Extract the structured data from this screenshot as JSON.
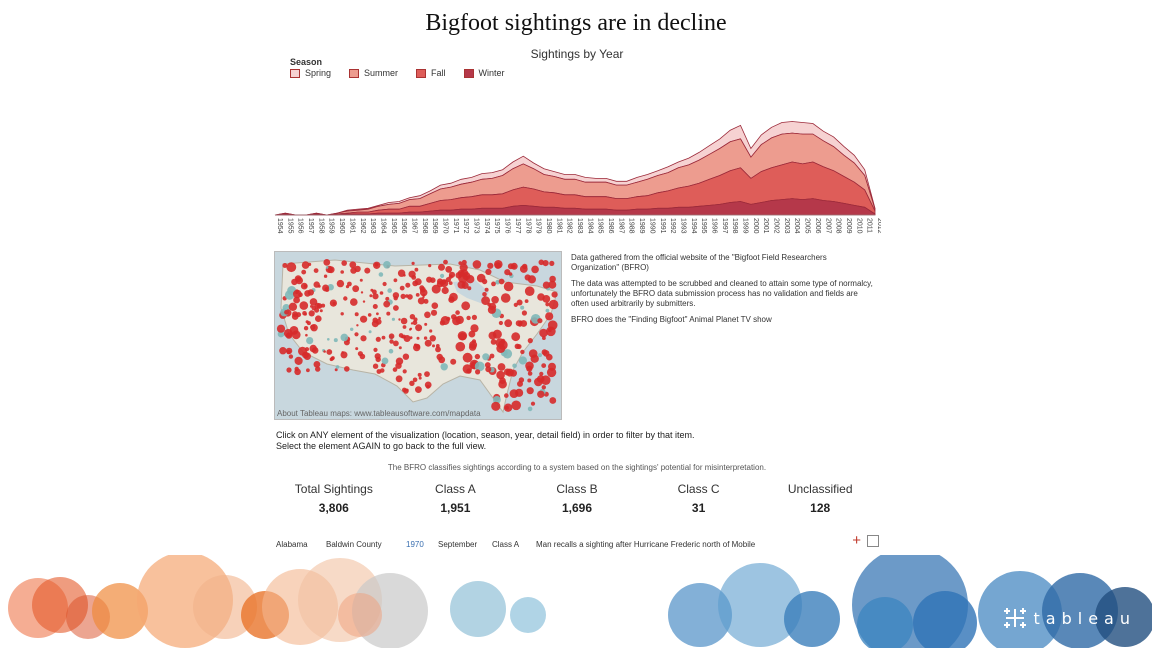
{
  "page": {
    "title": "Bigfoot sightings are in decline"
  },
  "legend": {
    "title": "Season",
    "items": [
      {
        "label": "Spring",
        "color": "#f6d2d2"
      },
      {
        "label": "Summer",
        "color": "#ed9c8f"
      },
      {
        "label": "Fall",
        "color": "#de5d59"
      },
      {
        "label": "Winter",
        "color": "#b5384a"
      }
    ]
  },
  "chart_data": {
    "type": "area",
    "title": "Sightings by Year",
    "xlabel": "",
    "ylabel": "",
    "stacked": true,
    "x": [
      "1954",
      "1955",
      "1956",
      "1957",
      "1958",
      "1959",
      "1960",
      "1961",
      "1962",
      "1963",
      "1964",
      "1965",
      "1966",
      "1967",
      "1968",
      "1969",
      "1970",
      "1971",
      "1972",
      "1973",
      "1974",
      "1975",
      "1976",
      "1977",
      "1978",
      "1979",
      "1980",
      "1981",
      "1982",
      "1983",
      "1984",
      "1985",
      "1986",
      "1987",
      "1988",
      "1989",
      "1990",
      "1991",
      "1992",
      "1993",
      "1994",
      "1995",
      "1996",
      "1997",
      "1998",
      "1999",
      "2000",
      "2001",
      "2002",
      "2003",
      "2004",
      "2005",
      "2006",
      "2007",
      "2008",
      "2009",
      "2010",
      "2011",
      "2012"
    ],
    "tick_labels": [
      "1954",
      "1955",
      "1956",
      "1957",
      "1958",
      "1959",
      "1960",
      "1961",
      "1962",
      "1963",
      "1964",
      "1965",
      "1966",
      "1967",
      "1968",
      "1969",
      "1970",
      "1971",
      "1972",
      "1973",
      "1974",
      "1975",
      "1976",
      "1977",
      "1978",
      "1979",
      "1980",
      "1981",
      "1982",
      "1983",
      "1984",
      "1985",
      "1986",
      "1987",
      "1988",
      "1989",
      "1990",
      "1991",
      "1992",
      "1993",
      "1994",
      "1995",
      "1996",
      "1997",
      "1998",
      "1999",
      "2000",
      "2001",
      "2002",
      "2003",
      "2004",
      "2005",
      "2006",
      "2007",
      "2008",
      "2009",
      "2010",
      "2011",
      "2012"
    ],
    "series": [
      {
        "name": "Winter",
        "values": [
          0,
          0,
          0,
          0,
          0,
          0,
          0,
          1,
          1,
          1,
          2,
          2,
          2,
          3,
          3,
          4,
          5,
          5,
          6,
          6,
          7,
          7,
          7,
          9,
          10,
          9,
          8,
          8,
          7,
          7,
          6,
          6,
          6,
          5,
          5,
          6,
          6,
          7,
          7,
          8,
          8,
          9,
          10,
          11,
          13,
          14,
          11,
          13,
          15,
          16,
          17,
          16,
          17,
          15,
          14,
          12,
          10,
          8,
          1
        ]
      },
      {
        "name": "Fall",
        "values": [
          0,
          1,
          0,
          0,
          1,
          0,
          1,
          1,
          2,
          2,
          3,
          4,
          4,
          6,
          6,
          8,
          10,
          11,
          12,
          13,
          14,
          14,
          15,
          17,
          19,
          18,
          16,
          15,
          14,
          14,
          13,
          13,
          13,
          12,
          12,
          13,
          14,
          16,
          18,
          20,
          22,
          24,
          27,
          30,
          33,
          35,
          27,
          32,
          34,
          36,
          38,
          37,
          38,
          35,
          32,
          28,
          24,
          18,
          3
        ]
      },
      {
        "name": "Summer",
        "values": [
          0,
          1,
          0,
          0,
          1,
          0,
          1,
          2,
          2,
          3,
          4,
          5,
          6,
          7,
          8,
          10,
          12,
          13,
          14,
          15,
          16,
          17,
          19,
          22,
          24,
          21,
          18,
          17,
          16,
          16,
          15,
          15,
          15,
          14,
          14,
          15,
          17,
          18,
          19,
          21,
          22,
          24,
          26,
          28,
          30,
          30,
          22,
          28,
          31,
          32,
          30,
          31,
          29,
          27,
          25,
          22,
          20,
          15,
          2
        ]
      },
      {
        "name": "Spring",
        "values": [
          0,
          0,
          0,
          0,
          0,
          0,
          0,
          1,
          1,
          1,
          1,
          2,
          2,
          2,
          3,
          3,
          4,
          4,
          5,
          5,
          6,
          6,
          6,
          7,
          8,
          6,
          6,
          5,
          5,
          5,
          5,
          4,
          4,
          4,
          4,
          5,
          5,
          5,
          6,
          6,
          7,
          8,
          9,
          10,
          12,
          14,
          9,
          10,
          11,
          12,
          12,
          12,
          11,
          10,
          10,
          9,
          8,
          6,
          1
        ]
      }
    ],
    "ylim": [
      0,
      110
    ],
    "grid": false,
    "legend": "top-left"
  },
  "map": {
    "credit": "About Tableau maps: www.tableausoftware.com/mapdata"
  },
  "info": {
    "p1": "Data gathered from the official website of the \"Bigfoot Field Researchers Organization\" (BFRO)",
    "p2": "The data was attempted to be scrubbed and cleaned to attain some type of normalcy, unfortunately the BFRO data submission process has no validation and fields are often used arbitrarily by submitters.",
    "p3": "BFRO does the \"Finding Bigfoot\" Animal Planet TV show"
  },
  "instructions": {
    "line1": "Click on ANY element of the visualization (location, season, year, detail field) in order to filter by that item.",
    "line2": "Select the element AGAIN to go back to the full view."
  },
  "class_note": "The BFRO classifies sightings according to a system based on the sightings' potential for misinterpretation.",
  "kpis": [
    {
      "label": "Total Sightings",
      "value": "3,806"
    },
    {
      "label": "Class A",
      "value": "1,951"
    },
    {
      "label": "Class B",
      "value": "1,696"
    },
    {
      "label": "Class C",
      "value": "31"
    },
    {
      "label": "Unclassified",
      "value": "128"
    }
  ],
  "detail_row": {
    "state": "Alabama",
    "county": "Baldwin County",
    "year": "1970",
    "season": "September",
    "class": "Class A",
    "title": "Man recalls a sighting after Hurricane Frederic north of Mobile"
  },
  "logo": {
    "text": "tableau"
  },
  "colors": {
    "accent": "#c0392b",
    "orange": "#e8742a",
    "blue": "#3e86c1"
  }
}
